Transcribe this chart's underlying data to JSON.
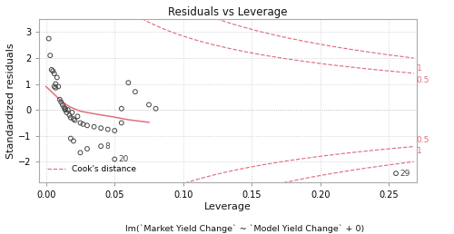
{
  "title": "Residuals vs Leverage",
  "xlabel": "Leverage",
  "xlabel2": "lm(`Market Yield Change` ~ `Model Yield Change` + 0)",
  "ylabel": "Standardized residuals",
  "xlim": [
    -0.005,
    0.27
  ],
  "ylim": [
    -2.8,
    3.5
  ],
  "yticks": [
    -2,
    -1,
    0,
    1,
    2,
    3
  ],
  "xticks": [
    0.0,
    0.05,
    0.1,
    0.15,
    0.2,
    0.25
  ],
  "background_color": "#ffffff",
  "grid_color": "#c8c8c8",
  "point_color": "#444444",
  "cook_color": "#e07080",
  "smooth_color": "#e07080",
  "points": [
    [
      0.002,
      2.75
    ],
    [
      0.003,
      2.1
    ],
    [
      0.004,
      1.55
    ],
    [
      0.005,
      1.5
    ],
    [
      0.006,
      1.4
    ],
    [
      0.006,
      0.9
    ],
    [
      0.007,
      1.0
    ],
    [
      0.007,
      0.85
    ],
    [
      0.008,
      1.25
    ],
    [
      0.009,
      0.9
    ],
    [
      0.01,
      0.4
    ],
    [
      0.011,
      0.3
    ],
    [
      0.012,
      0.2
    ],
    [
      0.013,
      0.1
    ],
    [
      0.014,
      0.05
    ],
    [
      0.014,
      0.0
    ],
    [
      0.015,
      -0.1
    ],
    [
      0.016,
      0.0
    ],
    [
      0.017,
      -0.2
    ],
    [
      0.018,
      -0.3
    ],
    [
      0.019,
      -0.1
    ],
    [
      0.02,
      -0.35
    ],
    [
      0.021,
      -0.4
    ],
    [
      0.023,
      -0.25
    ],
    [
      0.025,
      -0.5
    ],
    [
      0.027,
      -0.55
    ],
    [
      0.03,
      -0.6
    ],
    [
      0.035,
      -0.65
    ],
    [
      0.04,
      -0.7
    ],
    [
      0.045,
      -0.75
    ],
    [
      0.05,
      -0.8
    ],
    [
      0.055,
      -0.5
    ],
    [
      0.06,
      1.05
    ],
    [
      0.065,
      0.7
    ],
    [
      0.075,
      0.2
    ],
    [
      0.08,
      0.05
    ],
    [
      0.055,
      0.05
    ],
    [
      0.02,
      -1.2
    ],
    [
      0.018,
      -1.1
    ],
    [
      0.025,
      -1.65
    ],
    [
      0.03,
      -1.5
    ]
  ],
  "labeled_points": [
    [
      0.04,
      -1.4,
      "8"
    ],
    [
      0.05,
      -1.9,
      "20"
    ],
    [
      0.255,
      -2.45,
      "29"
    ]
  ],
  "smooth_line": [
    [
      0.0,
      0.9
    ],
    [
      0.003,
      0.75
    ],
    [
      0.007,
      0.55
    ],
    [
      0.012,
      0.3
    ],
    [
      0.018,
      0.1
    ],
    [
      0.025,
      -0.05
    ],
    [
      0.035,
      -0.15
    ],
    [
      0.05,
      -0.28
    ],
    [
      0.06,
      -0.38
    ],
    [
      0.075,
      -0.48
    ]
  ],
  "cook_levels": [
    0.5,
    1.0
  ],
  "cook_labels_pos": [
    [
      0.27,
      1.58,
      "1"
    ],
    [
      0.27,
      1.15,
      "0.5"
    ],
    [
      0.27,
      -1.15,
      "0.5"
    ],
    [
      0.27,
      -1.58,
      "1"
    ]
  ],
  "p": 2
}
